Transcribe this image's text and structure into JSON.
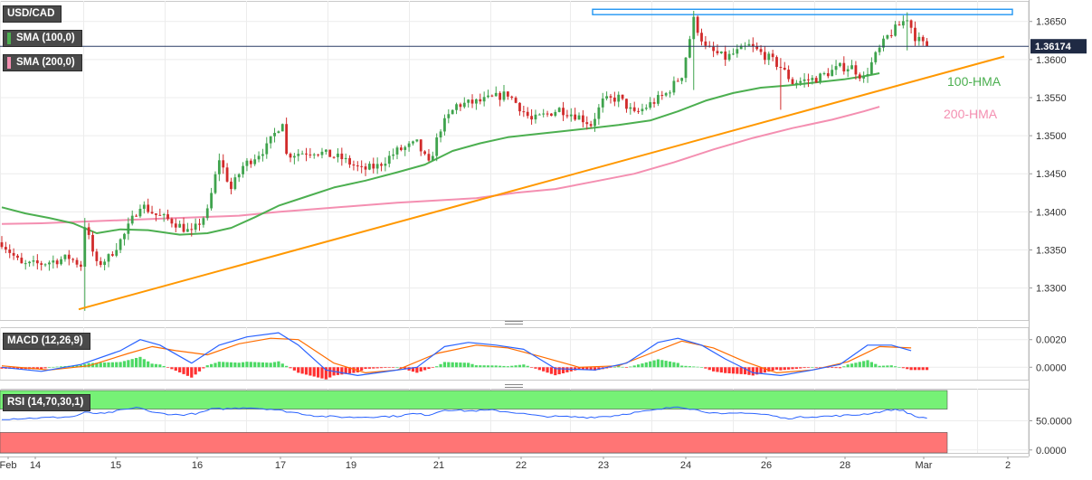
{
  "chart_data": [
    {
      "type": "candlestick",
      "symbol": "USD/CAD",
      "indicators": [
        {
          "name": "SMA (100,0)",
          "color": "#4caf50"
        },
        {
          "name": "SMA (200,0)",
          "color": "#f48fb1"
        }
      ],
      "ylim": [
        1.3258,
        1.3677
      ],
      "yticks": [
        "1.3650",
        "1.3600",
        "1.3550",
        "1.3500",
        "1.3450",
        "1.3400",
        "1.3350",
        "1.3300"
      ],
      "last_price": "1.36174",
      "x_ticks": [
        "Feb",
        "14",
        "15",
        "16",
        "17",
        "19",
        "21",
        "22",
        "23",
        "24",
        "26",
        "28",
        "Mar",
        "2"
      ],
      "annotations": [
        {
          "text": "100-HMA",
          "color": "#4caf50"
        },
        {
          "text": "200-HMA",
          "color": "#f48fb1"
        }
      ],
      "trendline": {
        "color": "#ff9800",
        "from": [
          "Feb 14",
          1.3272
        ],
        "to": [
          "Mar 1",
          1.3604
        ]
      },
      "resistance_band": {
        "color": "#2196f3",
        "low": 1.3659,
        "high": 1.3666
      },
      "hma_100": {
        "color": "#4caf50",
        "points": [
          [
            0,
            1.3406
          ],
          [
            6,
            1.3398
          ],
          [
            12,
            1.3392
          ],
          [
            18,
            1.3385
          ],
          [
            24,
            1.3372
          ],
          [
            30,
            1.3377
          ],
          [
            37,
            1.3376
          ],
          [
            45,
            1.337
          ],
          [
            52,
            1.3372
          ],
          [
            58,
            1.3379
          ],
          [
            64,
            1.3393
          ],
          [
            70,
            1.3408
          ],
          [
            77,
            1.342
          ],
          [
            84,
            1.3432
          ],
          [
            92,
            1.3441
          ],
          [
            100,
            1.3452
          ],
          [
            107,
            1.3462
          ],
          [
            114,
            1.348
          ],
          [
            121,
            1.349
          ],
          [
            128,
            1.3498
          ],
          [
            135,
            1.3502
          ],
          [
            142,
            1.3506
          ],
          [
            149,
            1.351
          ],
          [
            156,
            1.3514
          ],
          [
            164,
            1.352
          ],
          [
            171,
            1.3532
          ],
          [
            178,
            1.3546
          ],
          [
            185,
            1.3556
          ],
          [
            192,
            1.3563
          ],
          [
            199,
            1.3566
          ],
          [
            206,
            1.357
          ],
          [
            213,
            1.3574
          ],
          [
            219,
            1.3579
          ],
          [
            222,
            1.3582
          ]
        ]
      },
      "hma_200": {
        "color": "#f48fb1",
        "points": [
          [
            0,
            1.3384
          ],
          [
            10,
            1.3385
          ],
          [
            20,
            1.3387
          ],
          [
            30,
            1.3389
          ],
          [
            40,
            1.3391
          ],
          [
            50,
            1.3393
          ],
          [
            60,
            1.3395
          ],
          [
            70,
            1.34
          ],
          [
            80,
            1.3404
          ],
          [
            90,
            1.3408
          ],
          [
            100,
            1.3412
          ],
          [
            110,
            1.3415
          ],
          [
            120,
            1.3418
          ],
          [
            130,
            1.3425
          ],
          [
            140,
            1.343
          ],
          [
            150,
            1.344
          ],
          [
            160,
            1.345
          ],
          [
            170,
            1.3465
          ],
          [
            180,
            1.3482
          ],
          [
            190,
            1.3497
          ],
          [
            200,
            1.351
          ],
          [
            210,
            1.3521
          ],
          [
            218,
            1.3532
          ],
          [
            222,
            1.3538
          ]
        ]
      },
      "price_anchors": [
        [
          0,
          1.336
        ],
        [
          5,
          1.333
        ],
        [
          10,
          1.3332
        ],
        [
          17,
          1.334
        ],
        [
          20,
          1.333
        ],
        [
          21,
          1.3383
        ],
        [
          24,
          1.333
        ],
        [
          27,
          1.334
        ],
        [
          31,
          1.337
        ],
        [
          35,
          1.341
        ],
        [
          39,
          1.3396
        ],
        [
          43,
          1.3388
        ],
        [
          48,
          1.3372
        ],
        [
          52,
          1.34
        ],
        [
          55,
          1.347
        ],
        [
          58,
          1.343
        ],
        [
          61,
          1.346
        ],
        [
          67,
          1.3485
        ],
        [
          71,
          1.352
        ],
        [
          72,
          1.3475
        ],
        [
          79,
          1.348
        ],
        [
          86,
          1.347
        ],
        [
          91,
          1.3455
        ],
        [
          95,
          1.346
        ],
        [
          100,
          1.348
        ],
        [
          105,
          1.349
        ],
        [
          108,
          1.3462
        ],
        [
          111,
          1.351
        ],
        [
          115,
          1.354
        ],
        [
          121,
          1.3545
        ],
        [
          128,
          1.3555
        ],
        [
          134,
          1.352
        ],
        [
          141,
          1.3535
        ],
        [
          146,
          1.3525
        ],
        [
          149,
          1.3515
        ],
        [
          152,
          1.3545
        ],
        [
          156,
          1.355
        ],
        [
          160,
          1.3528
        ],
        [
          168,
          1.3555
        ],
        [
          172,
          1.358
        ],
        [
          175,
          1.3652
        ],
        [
          178,
          1.3615
        ],
        [
          183,
          1.3602
        ],
        [
          189,
          1.3618
        ],
        [
          194,
          1.3602
        ],
        [
          197,
          1.359
        ],
        [
          200,
          1.357
        ],
        [
          206,
          1.3575
        ],
        [
          212,
          1.359
        ],
        [
          215,
          1.359
        ],
        [
          218,
          1.3575
        ],
        [
          221,
          1.3605
        ],
        [
          224,
          1.363
        ],
        [
          227,
          1.3645
        ],
        [
          229,
          1.3655
        ],
        [
          231,
          1.363
        ],
        [
          233,
          1.362
        ],
        [
          234,
          1.36174
        ]
      ]
    },
    {
      "type": "macd",
      "label": "MACD (12,26,9)",
      "ylim": [
        -0.0009,
        0.0029
      ],
      "yticks": [
        "0.0020",
        "0.0000"
      ],
      "macd_color": "#2962ff",
      "signal_color": "#ff6d00",
      "hist_pos_color": "#4cd964",
      "hist_neg_color": "#ff3030",
      "macd_points": [
        [
          0,
          0.0
        ],
        [
          10,
          -0.0003
        ],
        [
          20,
          0.0002
        ],
        [
          30,
          0.0012
        ],
        [
          35,
          0.002
        ],
        [
          40,
          0.0016
        ],
        [
          48,
          0.0003
        ],
        [
          55,
          0.0016
        ],
        [
          62,
          0.0022
        ],
        [
          70,
          0.0025
        ],
        [
          75,
          0.0016
        ],
        [
          82,
          -0.0002
        ],
        [
          90,
          -0.0006
        ],
        [
          95,
          -0.0004
        ],
        [
          105,
          0.0
        ],
        [
          112,
          0.0015
        ],
        [
          118,
          0.0018
        ],
        [
          125,
          0.0016
        ],
        [
          132,
          0.0013
        ],
        [
          140,
          -0.0001
        ],
        [
          150,
          -0.0002
        ],
        [
          158,
          0.0003
        ],
        [
          166,
          0.0018
        ],
        [
          171,
          0.0021
        ],
        [
          177,
          0.0016
        ],
        [
          183,
          0.0006
        ],
        [
          190,
          -0.0004
        ],
        [
          197,
          -0.0006
        ],
        [
          205,
          -0.0002
        ],
        [
          212,
          0.0002
        ],
        [
          219,
          0.0016
        ],
        [
          225,
          0.0016
        ],
        [
          230,
          0.0012
        ]
      ],
      "signal_points": [
        [
          0,
          0.0001
        ],
        [
          12,
          -0.0002
        ],
        [
          22,
          0.0001
        ],
        [
          32,
          0.001
        ],
        [
          38,
          0.0015
        ],
        [
          44,
          0.0012
        ],
        [
          52,
          0.0009
        ],
        [
          60,
          0.0017
        ],
        [
          68,
          0.0021
        ],
        [
          75,
          0.002
        ],
        [
          84,
          0.0003
        ],
        [
          92,
          -0.0004
        ],
        [
          100,
          -0.0002
        ],
        [
          110,
          0.001
        ],
        [
          120,
          0.0016
        ],
        [
          128,
          0.0014
        ],
        [
          136,
          0.0008
        ],
        [
          146,
          0.0
        ],
        [
          156,
          0.0001
        ],
        [
          164,
          0.001
        ],
        [
          172,
          0.0019
        ],
        [
          180,
          0.0014
        ],
        [
          188,
          0.0004
        ],
        [
          196,
          -0.0004
        ],
        [
          205,
          -0.0002
        ],
        [
          214,
          0.0004
        ],
        [
          222,
          0.0015
        ],
        [
          230,
          0.0014
        ]
      ]
    },
    {
      "type": "rsi",
      "label": "RSI (14,70,30,1)",
      "ylim": [
        -5,
        105
      ],
      "yticks": [
        "50.0000",
        "0.0000"
      ],
      "overbought": 70,
      "oversold": 30,
      "overbought_color": "#76f176",
      "oversold_color": "#ff7575",
      "rsi_color": "#2962ff",
      "rsi_points": [
        [
          0,
          53
        ],
        [
          10,
          55
        ],
        [
          18,
          57
        ],
        [
          21,
          64
        ],
        [
          26,
          62
        ],
        [
          30,
          68
        ],
        [
          35,
          73
        ],
        [
          38,
          64
        ],
        [
          45,
          60
        ],
        [
          50,
          63
        ],
        [
          53,
          70
        ],
        [
          58,
          71
        ],
        [
          62,
          73
        ],
        [
          68,
          70
        ],
        [
          72,
          66
        ],
        [
          80,
          58
        ],
        [
          88,
          56
        ],
        [
          95,
          57
        ],
        [
          100,
          58
        ],
        [
          104,
          62
        ],
        [
          108,
          60
        ],
        [
          112,
          69
        ],
        [
          118,
          67
        ],
        [
          124,
          68
        ],
        [
          130,
          64
        ],
        [
          136,
          58
        ],
        [
          142,
          57
        ],
        [
          148,
          56
        ],
        [
          154,
          58
        ],
        [
          160,
          64
        ],
        [
          166,
          69
        ],
        [
          171,
          75
        ],
        [
          176,
          68
        ],
        [
          182,
          61
        ],
        [
          188,
          64
        ],
        [
          194,
          60
        ],
        [
          198,
          54
        ],
        [
          204,
          57
        ],
        [
          210,
          58
        ],
        [
          216,
          60
        ],
        [
          220,
          63
        ],
        [
          225,
          69
        ],
        [
          228,
          68
        ],
        [
          231,
          57
        ],
        [
          234,
          55
        ]
      ]
    }
  ]
}
